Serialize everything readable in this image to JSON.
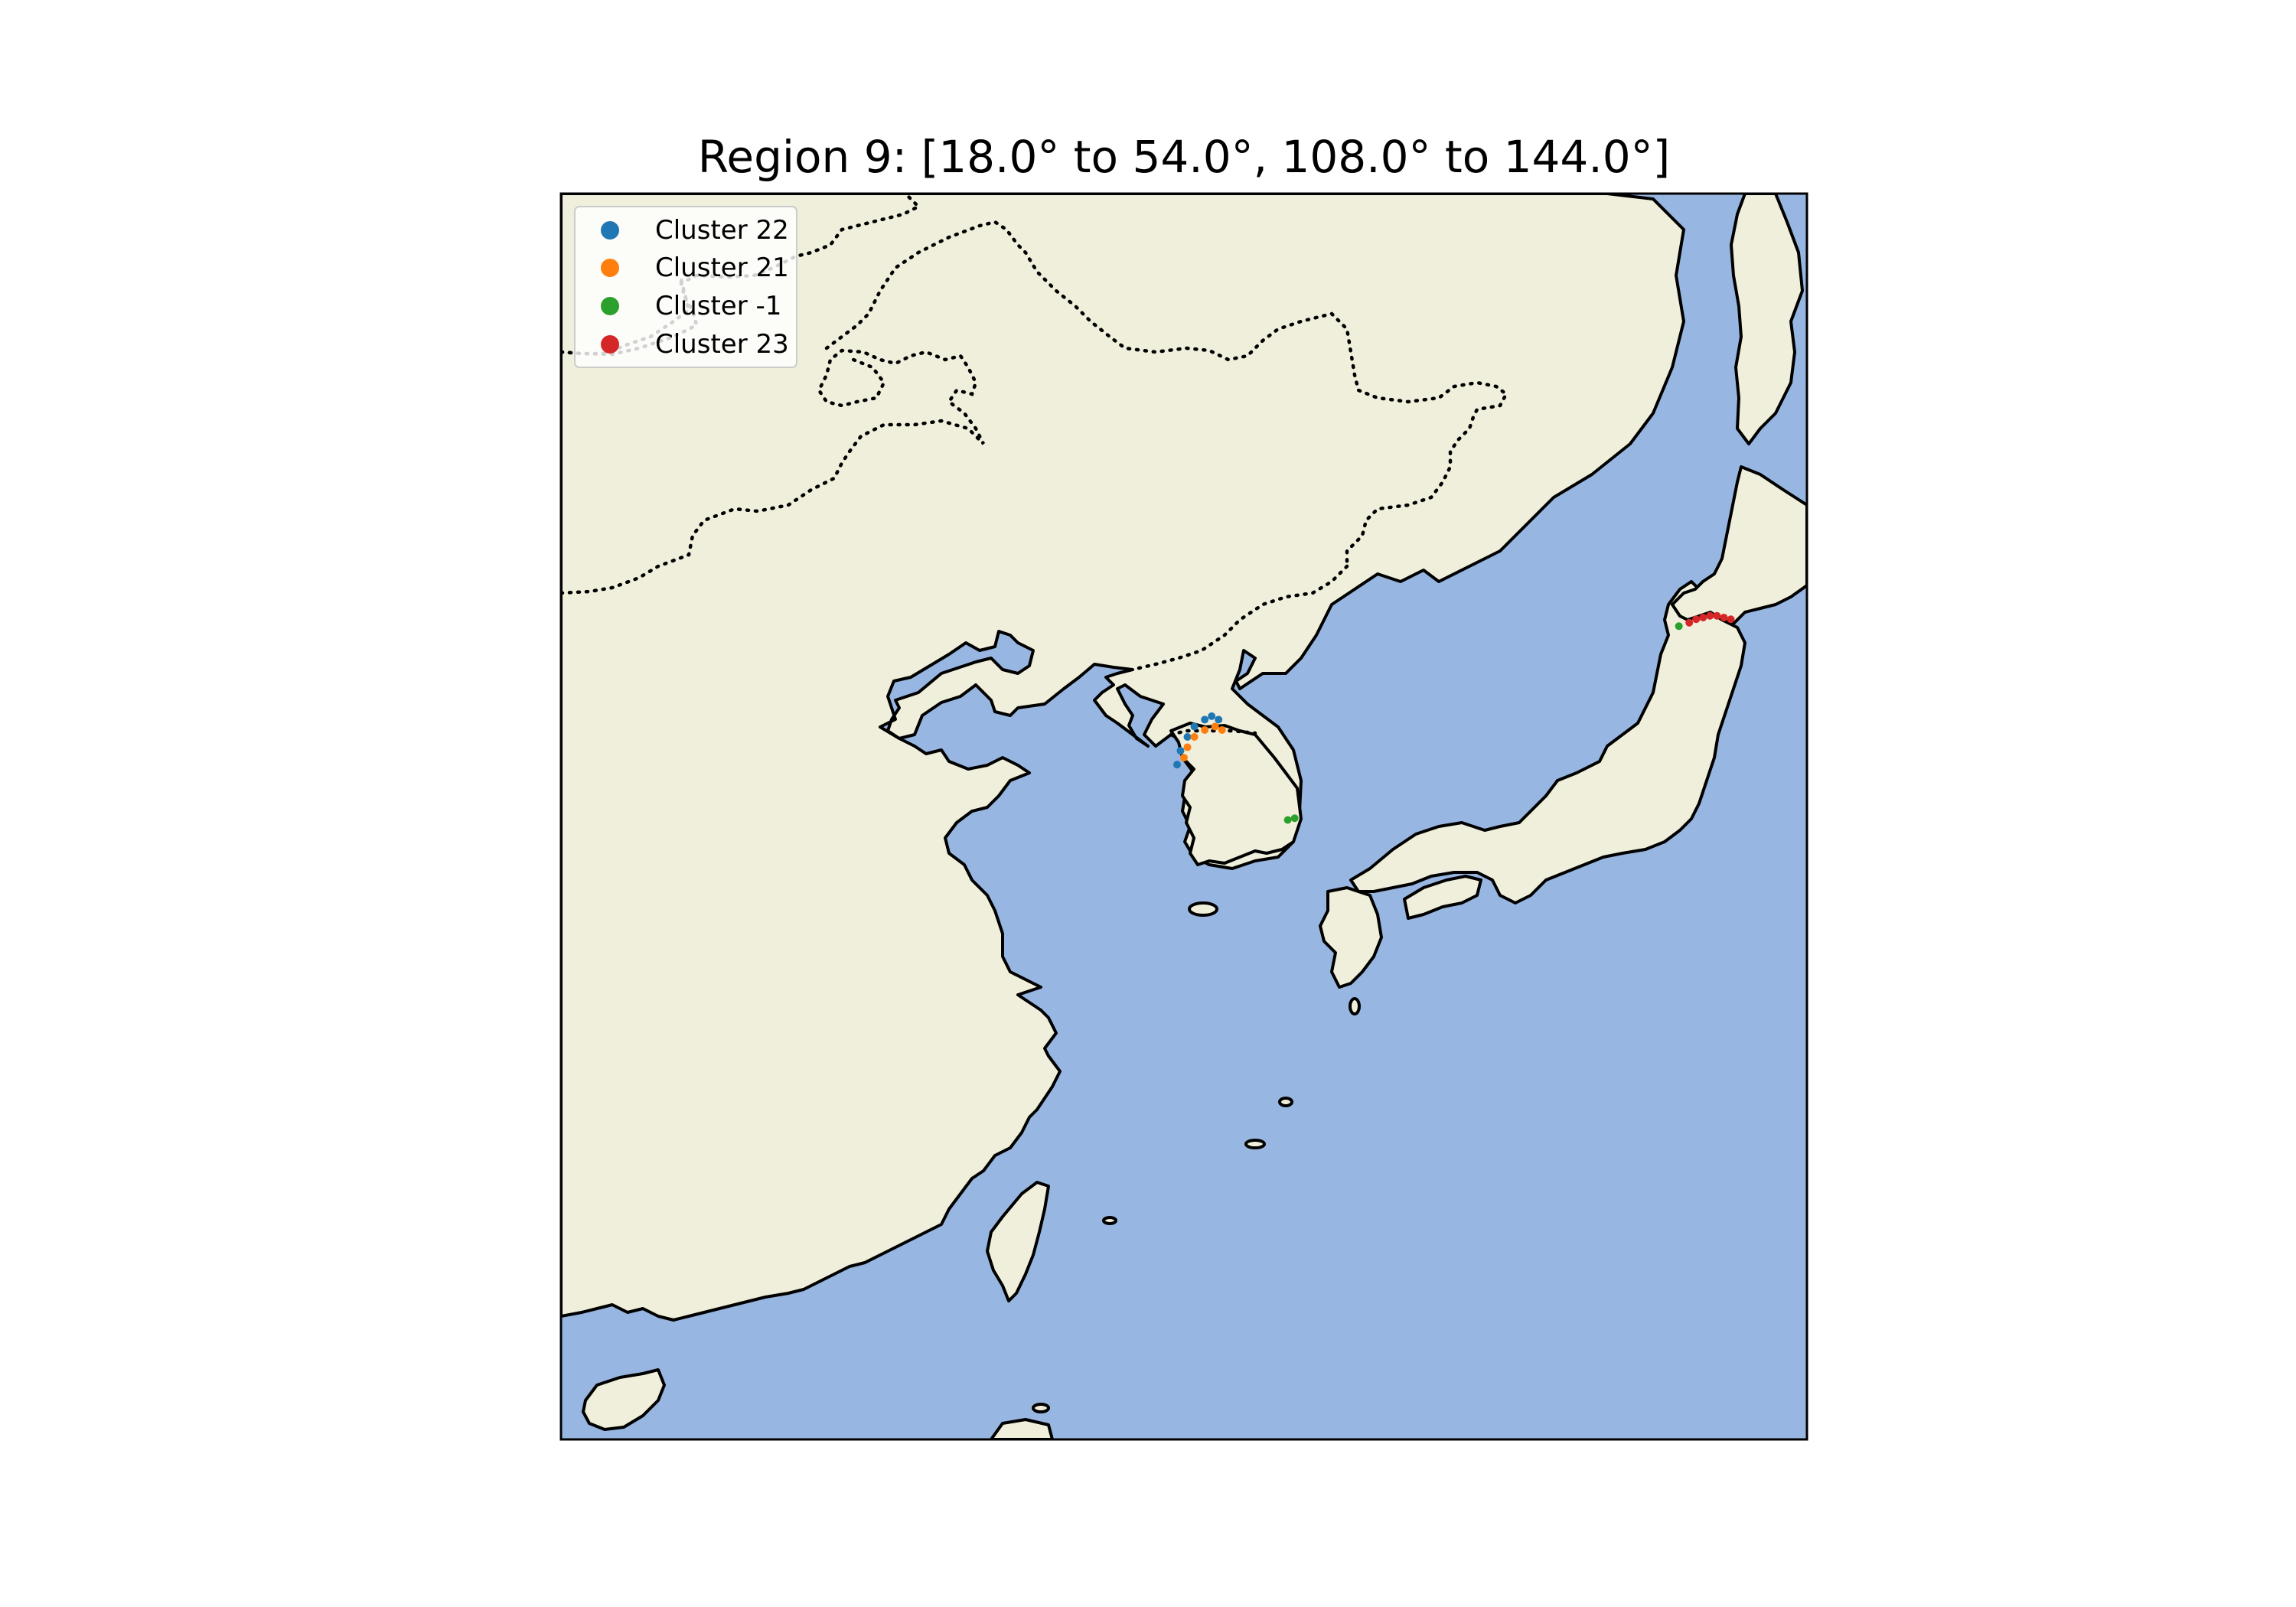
{
  "title": "Region 9: [18.0° to 54.0°, 108.0° to 144.0°]",
  "map": {
    "lat_range": [
      18.0,
      54.0
    ],
    "lon_range": [
      108.0,
      144.0
    ],
    "land_color": "#efefdb",
    "ocean_color": "#97b6e1",
    "coastline_color": "#000000",
    "border_style": "dotted"
  },
  "legend": {
    "placement": "upper-left",
    "entries": [
      {
        "label": "Cluster 22",
        "color": "#1f77b4"
      },
      {
        "label": "Cluster 21",
        "color": "#ff7f0e"
      },
      {
        "label": "Cluster -1",
        "color": "#2ca02c"
      },
      {
        "label": "Cluster 23",
        "color": "#d62728"
      }
    ]
  },
  "clusters": [
    {
      "name": "Cluster 22",
      "color": "#1f77b4",
      "points": [
        [
          37.5,
          125.8
        ],
        [
          37.9,
          125.9
        ],
        [
          38.3,
          126.1
        ],
        [
          38.6,
          126.3
        ],
        [
          38.8,
          126.6
        ],
        [
          38.9,
          126.8
        ],
        [
          38.8,
          127.0
        ]
      ]
    },
    {
      "name": "Cluster 21",
      "color": "#ff7f0e",
      "points": [
        [
          37.7,
          126.0
        ],
        [
          38.0,
          126.1
        ],
        [
          38.3,
          126.3
        ],
        [
          38.5,
          126.6
        ],
        [
          38.6,
          126.9
        ],
        [
          38.5,
          127.1
        ]
      ]
    },
    {
      "name": "Cluster -1",
      "color": "#2ca02c",
      "points": [
        [
          35.9,
          129.0
        ],
        [
          35.95,
          129.2
        ],
        [
          41.5,
          140.3
        ]
      ]
    },
    {
      "name": "Cluster 23",
      "color": "#d62728",
      "points": [
        [
          41.6,
          140.6
        ],
        [
          41.7,
          140.8
        ],
        [
          41.75,
          141.0
        ],
        [
          41.8,
          141.2
        ],
        [
          41.8,
          141.4
        ],
        [
          41.75,
          141.6
        ],
        [
          41.7,
          141.8
        ]
      ]
    }
  ]
}
